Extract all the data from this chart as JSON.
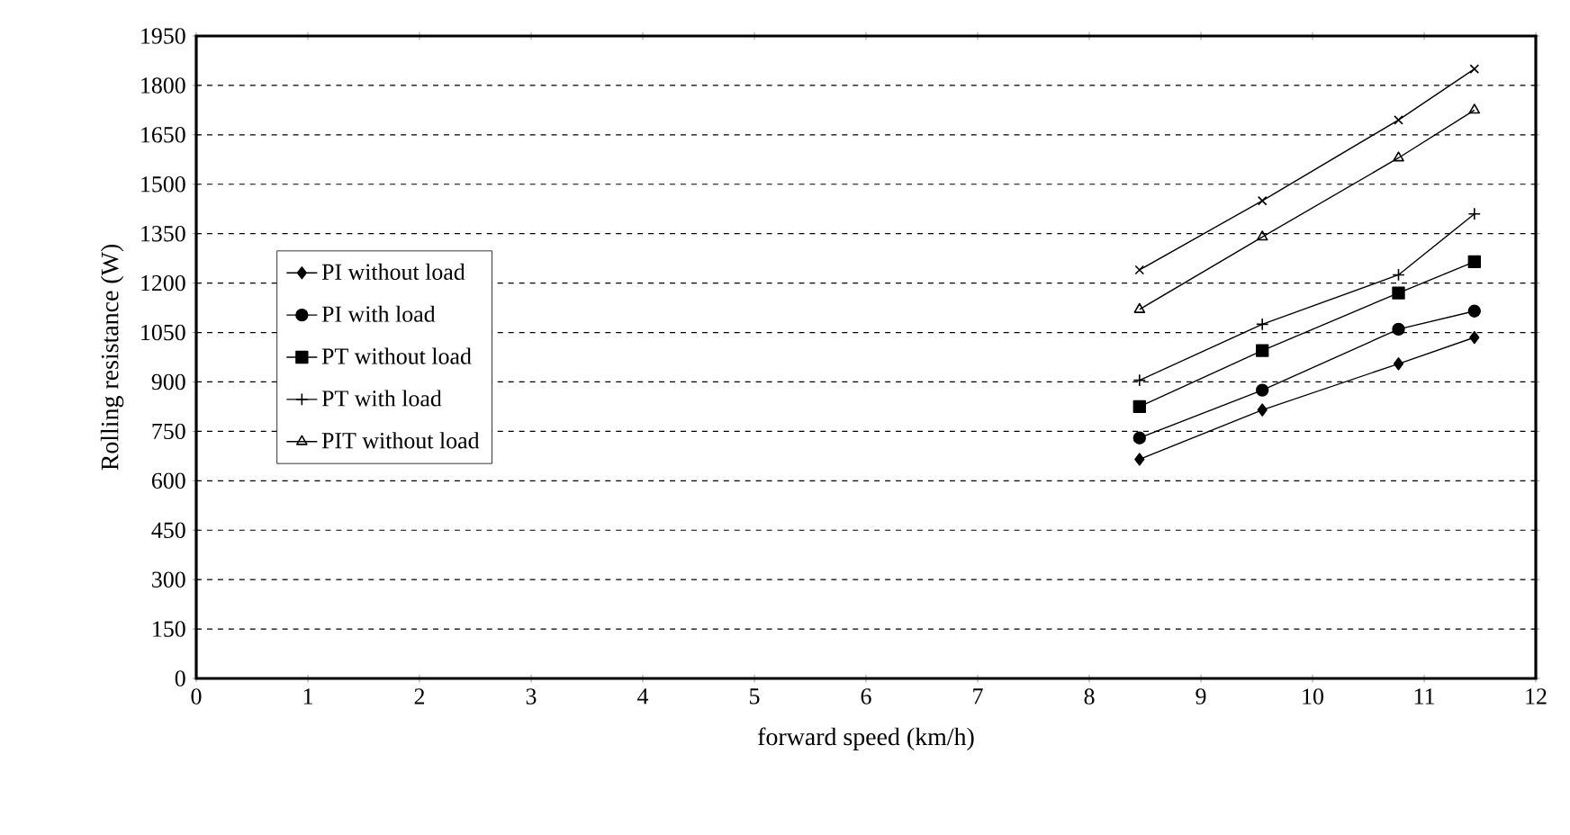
{
  "chart_data": {
    "type": "line",
    "xlabel": "forward speed (km/h)",
    "ylabel": "Rolling resistance (W)",
    "xlim": [
      0,
      12
    ],
    "xticks": [
      0,
      1,
      2,
      3,
      4,
      5,
      6,
      7,
      8,
      9,
      10,
      11,
      12
    ],
    "ylim": [
      0,
      1950
    ],
    "yticks": [
      0,
      150,
      300,
      450,
      600,
      750,
      900,
      1050,
      1200,
      1350,
      1500,
      1650,
      1800,
      1950
    ],
    "grid": "y",
    "legend": "left",
    "series": [
      {
        "name": "PI without load",
        "color": "#000000",
        "marker": "diamond",
        "x": [
          8.45,
          9.55,
          10.77,
          11.45
        ],
        "values": [
          665,
          815,
          955,
          1035
        ]
      },
      {
        "name": "PI with load",
        "color": "#000000",
        "marker": "circle",
        "x": [
          8.45,
          9.55,
          10.77,
          11.45
        ],
        "values": [
          730,
          875,
          1060,
          1115
        ]
      },
      {
        "name": "PT without load",
        "color": "#000000",
        "marker": "square",
        "x": [
          8.45,
          9.55,
          10.77,
          11.45
        ],
        "values": [
          825,
          995,
          1170,
          1265
        ]
      },
      {
        "name": "PT with load",
        "color": "#000000",
        "marker": "cross",
        "x": [
          8.45,
          9.55,
          10.77,
          11.45
        ],
        "values": [
          905,
          1075,
          1225,
          1410
        ]
      },
      {
        "name": "PIT without load",
        "color": "#000000",
        "marker": "triangle",
        "x": [
          8.45,
          9.55,
          10.77,
          11.45
        ],
        "values": [
          1120,
          1340,
          1580,
          1725
        ]
      },
      {
        "color": "#000000",
        "marker": "cross",
        "x": [
          8.45,
          9.55,
          10.77,
          11.45
        ],
        "values": [
          1240,
          1450,
          1695,
          1850
        ]
      }
    ]
  }
}
